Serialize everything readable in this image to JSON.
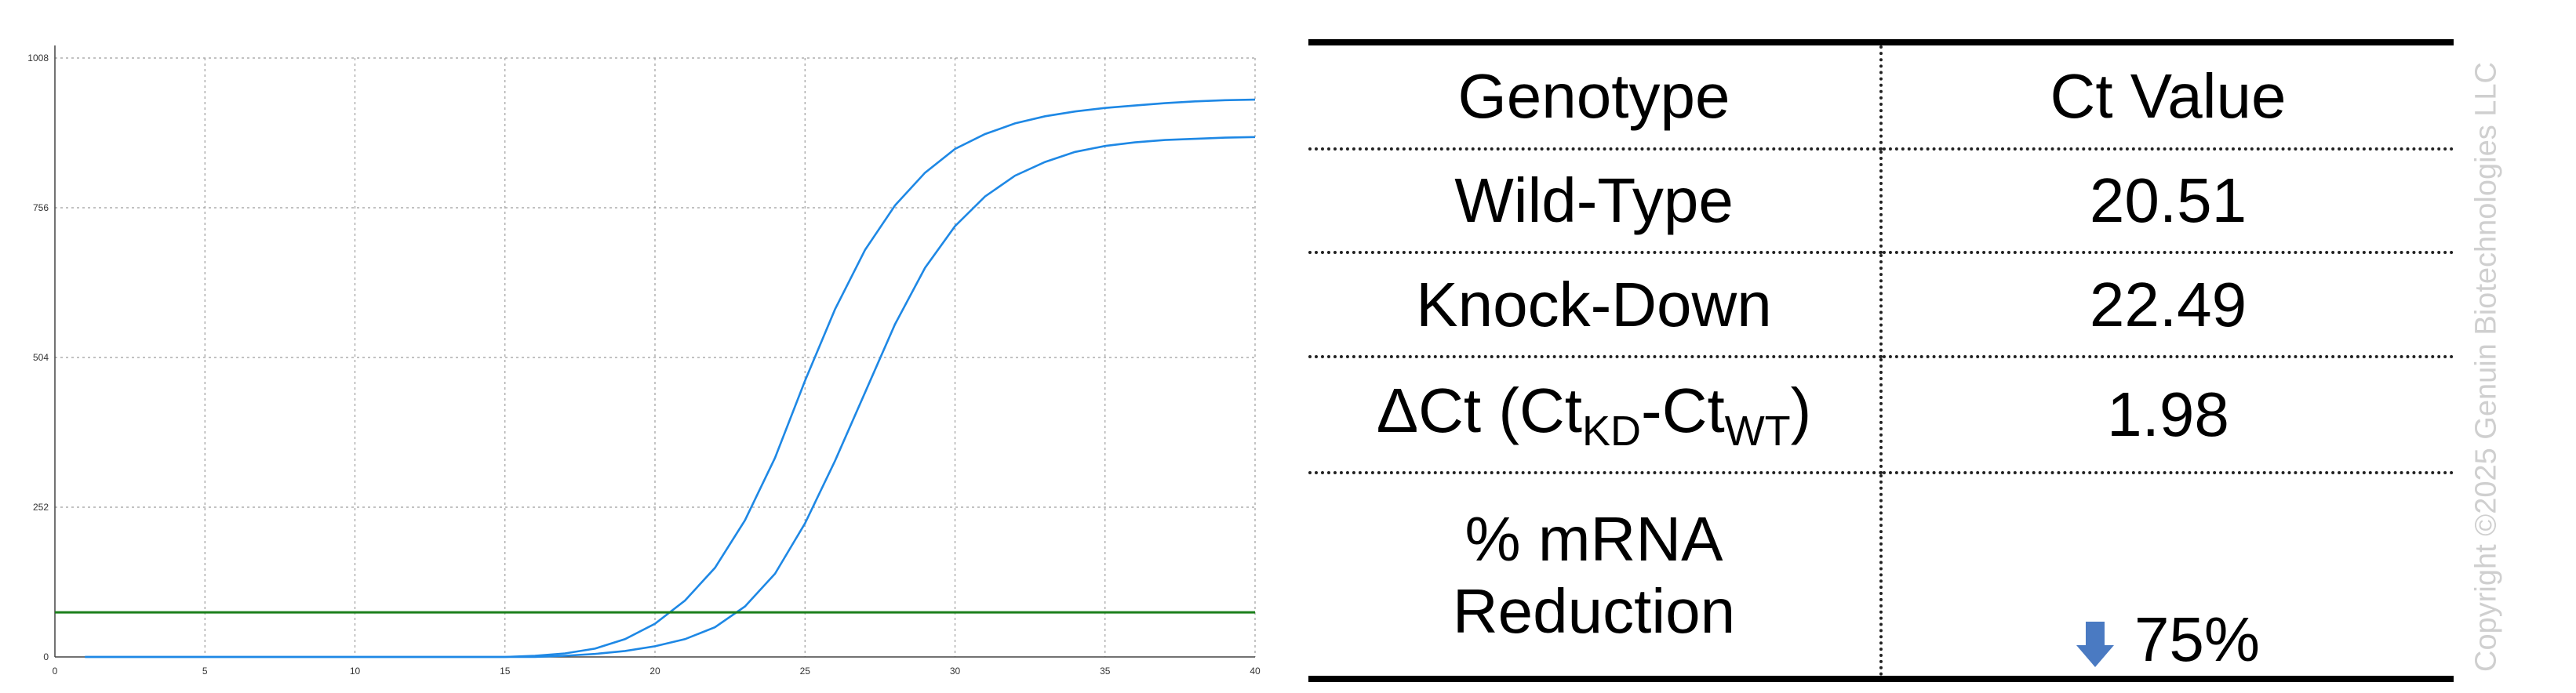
{
  "chart_data": {
    "type": "line",
    "xlim": [
      0,
      40
    ],
    "ylim": [
      0,
      1008
    ],
    "xticks": [
      "0",
      "5",
      "10",
      "15",
      "20",
      "25",
      "30",
      "35",
      "40"
    ],
    "yticks": [
      "0",
      "252",
      "504",
      "756",
      "1008"
    ],
    "grid": true,
    "colors": {
      "curves": "#1e88e5",
      "threshold": "#1a7f1a",
      "grid": "#9e9e9e"
    },
    "threshold": 75,
    "x": [
      1,
      2,
      3,
      4,
      5,
      6,
      7,
      8,
      9,
      10,
      11,
      12,
      13,
      14,
      15,
      16,
      17,
      18,
      19,
      20,
      21,
      22,
      23,
      24,
      25,
      26,
      27,
      28,
      29,
      30,
      31,
      32,
      33,
      34,
      35,
      36,
      37,
      38,
      39,
      40
    ],
    "series": [
      {
        "values": [
          0,
          0,
          0,
          0,
          0,
          0,
          0,
          0,
          0,
          0,
          0,
          0,
          0,
          0,
          0,
          2,
          6,
          14,
          30,
          56,
          95,
          150,
          230,
          335,
          465,
          585,
          685,
          760,
          815,
          855,
          880,
          898,
          910,
          918,
          924,
          928,
          932,
          935,
          937,
          938
        ]
      },
      {
        "values": [
          0,
          0,
          0,
          0,
          0,
          0,
          0,
          0,
          0,
          0,
          0,
          0,
          0,
          0,
          0,
          0,
          2,
          5,
          10,
          18,
          30,
          50,
          85,
          140,
          225,
          330,
          445,
          560,
          655,
          725,
          775,
          810,
          833,
          850,
          860,
          866,
          870,
          872,
          874,
          875
        ]
      }
    ]
  },
  "table": {
    "headers": [
      "Genotype",
      "Ct Value"
    ],
    "rows": [
      {
        "label": "Wild-Type",
        "value": "20.51"
      },
      {
        "label": "Knock-Down",
        "value": "22.49"
      },
      {
        "label_parts": [
          "ΔCt (Ct",
          "KD",
          "-Ct",
          "WT",
          ")"
        ],
        "value": "1.98"
      },
      {
        "label_lines": [
          "% mRNA",
          "Reduction"
        ],
        "value": "75%",
        "icon": "down-arrow-icon",
        "icon_color": "#4a7ac2"
      }
    ]
  },
  "watermark": "Copyright ©2025 Genuin Biotechnologies LLC"
}
